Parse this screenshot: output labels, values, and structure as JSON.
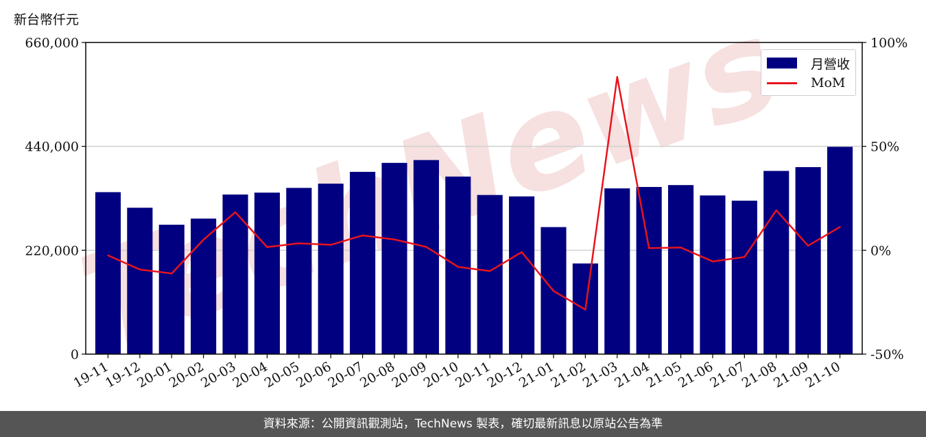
{
  "chart_data": {
    "type": "bar",
    "unit_label": "新台幣仟元",
    "categories": [
      "19-11",
      "19-12",
      "20-01",
      "20-02",
      "20-03",
      "20-04",
      "20-05",
      "20-06",
      "20-07",
      "20-08",
      "20-09",
      "20-10",
      "20-11",
      "20-12",
      "21-01",
      "21-02",
      "21-03",
      "21-04",
      "21-05",
      "21-06",
      "21-07",
      "21-08",
      "21-09",
      "21-10"
    ],
    "series": [
      {
        "name": "月營收",
        "axis": "left",
        "color": "#000080",
        "values": [
          343000,
          310000,
          274000,
          287000,
          338000,
          342000,
          352000,
          361000,
          386000,
          405000,
          411000,
          376000,
          337000,
          334000,
          269000,
          192000,
          351000,
          354000,
          358000,
          336000,
          325000,
          388000,
          396000,
          439000
        ]
      },
      {
        "name": "MoM",
        "axis": "right",
        "color": "#e8141b",
        "values": [
          -2.5,
          -9.3,
          -11.2,
          5.1,
          18.3,
          1.5,
          3.3,
          2.6,
          7.1,
          5.2,
          1.6,
          -8.0,
          -10.0,
          -0.9,
          -19.6,
          -28.6,
          83.4,
          1.0,
          1.3,
          -5.4,
          -3.3,
          19.2,
          2.2,
          11.2
        ]
      }
    ],
    "left_axis": {
      "ylim": [
        0,
        660000
      ],
      "ticks": [
        "0",
        "220,000",
        "440,000",
        "660,000"
      ]
    },
    "right_axis": {
      "ylim": [
        -50,
        100
      ],
      "ticks": [
        "-50%",
        "0%",
        "50%",
        "100%"
      ]
    },
    "grid": "horizontal",
    "legend_position": "top-right"
  },
  "watermark": "TechNews",
  "footer_text": "資料來源：公開資訊觀測站，TechNews 製表，確切最新訊息以原站公告為準"
}
